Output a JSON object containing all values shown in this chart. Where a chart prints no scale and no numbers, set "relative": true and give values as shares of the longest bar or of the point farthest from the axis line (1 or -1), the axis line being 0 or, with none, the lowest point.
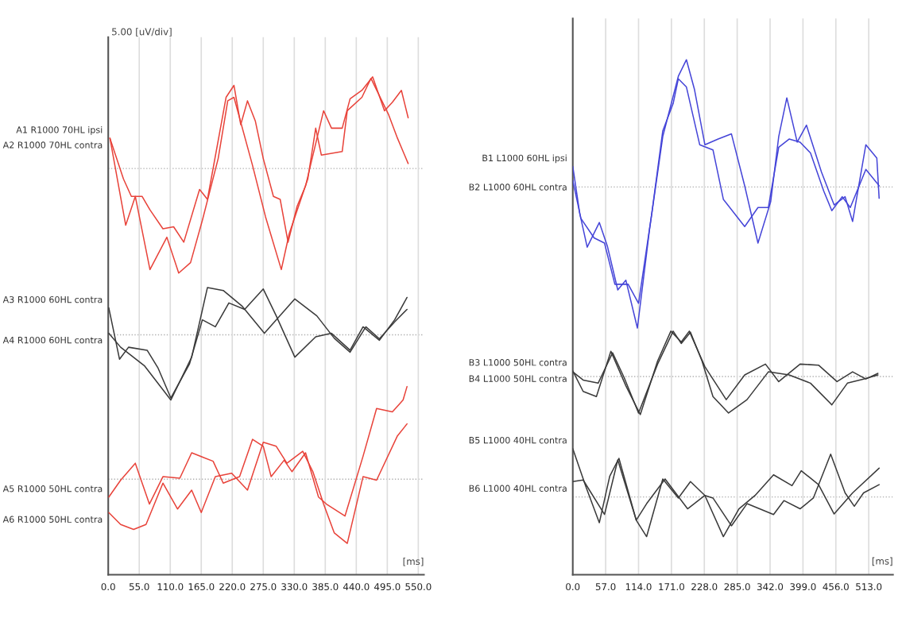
{
  "chart_data": [
    {
      "type": "line",
      "relative": true,
      "xlabel": "[ms]",
      "ylabel": "5.00 [uV/div]",
      "xlim": [
        0,
        560
      ],
      "grid": "x",
      "xticks": [
        {
          "value": 0,
          "label": "0.0"
        },
        {
          "value": 55,
          "label": "55.0"
        },
        {
          "value": 110,
          "label": "110.0"
        },
        {
          "value": 165,
          "label": "165.0"
        },
        {
          "value": 220,
          "label": "220.0"
        },
        {
          "value": 275,
          "label": "275.0"
        },
        {
          "value": 330,
          "label": "330.0"
        },
        {
          "value": 385,
          "label": "385.0"
        },
        {
          "value": 440,
          "label": "440.0"
        },
        {
          "value": 495,
          "label": "495.0"
        },
        {
          "value": 550,
          "label": "550.0"
        }
      ],
      "ref_lines": [
        {
          "axis": "y",
          "value": 0.816,
          "color": "#b0b0b0",
          "line_style": "dotted"
        },
        {
          "axis": "y",
          "value": 0.482,
          "color": "#b0b0b0",
          "line_style": "dotted"
        },
        {
          "axis": "y",
          "value": 0.192,
          "color": "#b0b0b0",
          "line_style": "dotted"
        }
      ],
      "series": [
        {
          "name": "A1 R1000 70HL ipsi",
          "color": "#e8433a",
          "x": [
            3,
            31,
            48,
            74,
            104,
            125,
            146,
            167,
            195,
            212,
            223,
            256,
            279,
            307,
            321,
            354,
            368,
            378,
            415,
            424,
            450,
            466,
            497,
            513,
            532
          ],
          "values": [
            0.877,
            0.702,
            0.76,
            0.613,
            0.678,
            0.606,
            0.627,
            0.712,
            0.836,
            0.952,
            0.959,
            0.822,
            0.719,
            0.613,
            0.685,
            0.795,
            0.897,
            0.843,
            0.85,
            0.932,
            0.959,
            0.997,
            0.925,
            0.877,
            0.826
          ]
        },
        {
          "name": "A2 R1000 70HL contra",
          "color": "#e8433a",
          "x": [
            3,
            27,
            41,
            60,
            74,
            97,
            116,
            134,
            162,
            176,
            209,
            223,
            235,
            247,
            261,
            275,
            293,
            305,
            319,
            335,
            350,
            382,
            396,
            415,
            429,
            450,
            469,
            490,
            504,
            520,
            532
          ],
          "values": [
            0.877,
            0.795,
            0.76,
            0.76,
            0.733,
            0.695,
            0.699,
            0.668,
            0.774,
            0.754,
            0.959,
            0.983,
            0.904,
            0.952,
            0.911,
            0.836,
            0.76,
            0.754,
            0.668,
            0.74,
            0.781,
            0.932,
            0.897,
            0.897,
            0.956,
            0.973,
            1.0,
            0.932,
            0.949,
            0.973,
            0.918
          ]
        },
        {
          "name": "A3 R1000 60HL contra",
          "color": "#3a3a3a",
          "x": [
            1,
            20,
            36,
            69,
            88,
            111,
            144,
            167,
            190,
            214,
            242,
            275,
            298,
            331,
            368,
            396,
            429,
            452,
            481,
            508,
            530
          ],
          "values": [
            0.536,
            0.433,
            0.457,
            0.451,
            0.416,
            0.355,
            0.423,
            0.512,
            0.498,
            0.546,
            0.533,
            0.574,
            0.52,
            0.437,
            0.478,
            0.485,
            0.451,
            0.498,
            0.471,
            0.512,
            0.557
          ]
        },
        {
          "name": "A4 R1000 60HL contra",
          "color": "#3a3a3a",
          "x": [
            1,
            22,
            64,
            111,
            148,
            176,
            204,
            237,
            277,
            331,
            370,
            401,
            429,
            457,
            481,
            508,
            530
          ],
          "values": [
            0.485,
            0.457,
            0.42,
            0.351,
            0.437,
            0.577,
            0.571,
            0.54,
            0.485,
            0.554,
            0.52,
            0.475,
            0.447,
            0.498,
            0.474,
            0.508,
            0.533
          ]
        },
        {
          "name": "A5 R1000 50HL contra",
          "color": "#e8433a",
          "x": [
            1,
            22,
            48,
            73,
            97,
            127,
            148,
            186,
            204,
            233,
            256,
            275,
            289,
            312,
            326,
            350,
            373,
            387,
            420,
            452,
            476,
            504,
            523,
            530
          ],
          "values": [
            0.156,
            0.19,
            0.224,
            0.142,
            0.197,
            0.194,
            0.245,
            0.228,
            0.184,
            0.197,
            0.272,
            0.258,
            0.197,
            0.23,
            0.207,
            0.245,
            0.156,
            0.142,
            0.118,
            0.238,
            0.334,
            0.327,
            0.351,
            0.378
          ]
        },
        {
          "name": "A6 R1000 50HL contra",
          "color": "#e8433a",
          "x": [
            1,
            22,
            45,
            67,
            97,
            123,
            148,
            165,
            190,
            219,
            247,
            275,
            298,
            317,
            345,
            363,
            382,
            401,
            424,
            452,
            476,
            513,
            530
          ],
          "values": [
            0.125,
            0.101,
            0.091,
            0.101,
            0.184,
            0.132,
            0.17,
            0.125,
            0.197,
            0.204,
            0.17,
            0.266,
            0.258,
            0.224,
            0.248,
            0.207,
            0.142,
            0.084,
            0.063,
            0.197,
            0.19,
            0.279,
            0.303
          ]
        }
      ]
    },
    {
      "type": "line",
      "relative": true,
      "xlabel": "[ms]",
      "xlim": [
        0,
        555
      ],
      "grid": "x",
      "xticks": [
        {
          "value": 0,
          "label": "0.0"
        },
        {
          "value": 57,
          "label": "57.0"
        },
        {
          "value": 114,
          "label": "114.0"
        },
        {
          "value": 171,
          "label": "171.0"
        },
        {
          "value": 228,
          "label": "228.0"
        },
        {
          "value": 285,
          "label": "285.0"
        },
        {
          "value": 342,
          "label": "342.0"
        },
        {
          "value": 399,
          "label": "399.0"
        },
        {
          "value": 456,
          "label": "456.0"
        },
        {
          "value": 513,
          "label": "513.0"
        }
      ],
      "ref_lines": [
        {
          "axis": "y",
          "value": 0.753,
          "color": "#b0b0b0",
          "line_style": "dotted"
        },
        {
          "axis": "y",
          "value": 0.385,
          "color": "#b0b0b0",
          "line_style": "dotted"
        },
        {
          "axis": "y",
          "value": 0.151,
          "color": "#b0b0b0",
          "line_style": "dotted"
        }
      ],
      "series": [
        {
          "name": "B1 L1000 60HL ipsi",
          "color": "#4545d8",
          "x": [
            0,
            12,
            25,
            46,
            60,
            78,
            92,
            112,
            133,
            156,
            183,
            197,
            211,
            229,
            252,
            275,
            298,
            321,
            343,
            357,
            371,
            389,
            405,
            431,
            453,
            472,
            485,
            508,
            527,
            531
          ],
          "values": [
            0.793,
            0.702,
            0.636,
            0.684,
            0.638,
            0.553,
            0.572,
            0.479,
            0.67,
            0.851,
            0.968,
            1.0,
            0.942,
            0.835,
            0.846,
            0.856,
            0.755,
            0.644,
            0.724,
            0.851,
            0.926,
            0.84,
            0.873,
            0.782,
            0.718,
            0.734,
            0.686,
            0.835,
            0.809,
            0.731
          ]
        },
        {
          "name": "B2 L1000 60HL contra",
          "color": "#4545d8",
          "x": [
            0,
            14,
            37,
            55,
            73,
            96,
            114,
            137,
            156,
            174,
            183,
            197,
            220,
            243,
            261,
            298,
            321,
            339,
            357,
            375,
            394,
            412,
            435,
            449,
            467,
            481,
            508,
            527,
            531
          ],
          "values": [
            0.766,
            0.692,
            0.654,
            0.644,
            0.564,
            0.564,
            0.527,
            0.702,
            0.862,
            0.915,
            0.963,
            0.947,
            0.835,
            0.825,
            0.729,
            0.676,
            0.713,
            0.713,
            0.83,
            0.846,
            0.84,
            0.819,
            0.745,
            0.707,
            0.734,
            0.713,
            0.787,
            0.761,
            0.755
          ]
        },
        {
          "name": "B3 L1000 50HL contra",
          "color": "#3a3a3a",
          "x": [
            0,
            18,
            41,
            66,
            92,
            117,
            147,
            170,
            188,
            202,
            229,
            266,
            298,
            334,
            357,
            394,
            426,
            458,
            485,
            508,
            529
          ],
          "values": [
            0.396,
            0.356,
            0.346,
            0.434,
            0.367,
            0.311,
            0.415,
            0.473,
            0.452,
            0.473,
            0.404,
            0.34,
            0.388,
            0.409,
            0.375,
            0.409,
            0.407,
            0.375,
            0.394,
            0.38,
            0.391
          ]
        },
        {
          "name": "B4 L1000 50HL contra",
          "color": "#3a3a3a",
          "x": [
            0,
            18,
            44,
            69,
            89,
            114,
            147,
            174,
            188,
            204,
            224,
            243,
            270,
            302,
            339,
            375,
            412,
            449,
            476,
            504,
            529
          ],
          "values": [
            0.394,
            0.378,
            0.372,
            0.431,
            0.383,
            0.314,
            0.409,
            0.473,
            0.449,
            0.471,
            0.415,
            0.346,
            0.314,
            0.34,
            0.394,
            0.388,
            0.372,
            0.33,
            0.372,
            0.38,
            0.388
          ]
        },
        {
          "name": "B5 L1000 40HL contra",
          "color": "#3a3a3a",
          "x": [
            0,
            23,
            46,
            64,
            80,
            110,
            128,
            156,
            183,
            204,
            229,
            261,
            288,
            316,
            348,
            380,
            396,
            426,
            453,
            485,
            531
          ],
          "values": [
            0.245,
            0.17,
            0.101,
            0.191,
            0.226,
            0.106,
            0.074,
            0.186,
            0.149,
            0.181,
            0.154,
            0.074,
            0.128,
            0.154,
            0.194,
            0.173,
            0.202,
            0.175,
            0.118,
            0.159,
            0.207
          ]
        },
        {
          "name": "B6 L1000 40HL contra",
          "color": "#3a3a3a",
          "x": [
            0,
            18,
            55,
            78,
            110,
            128,
            160,
            199,
            229,
            243,
            275,
            302,
            348,
            366,
            394,
            417,
            447,
            472,
            488,
            504,
            531
          ],
          "values": [
            0.181,
            0.184,
            0.117,
            0.223,
            0.106,
            0.138,
            0.186,
            0.128,
            0.154,
            0.149,
            0.095,
            0.138,
            0.117,
            0.144,
            0.128,
            0.149,
            0.234,
            0.159,
            0.133,
            0.159,
            0.175
          ]
        }
      ]
    }
  ]
}
